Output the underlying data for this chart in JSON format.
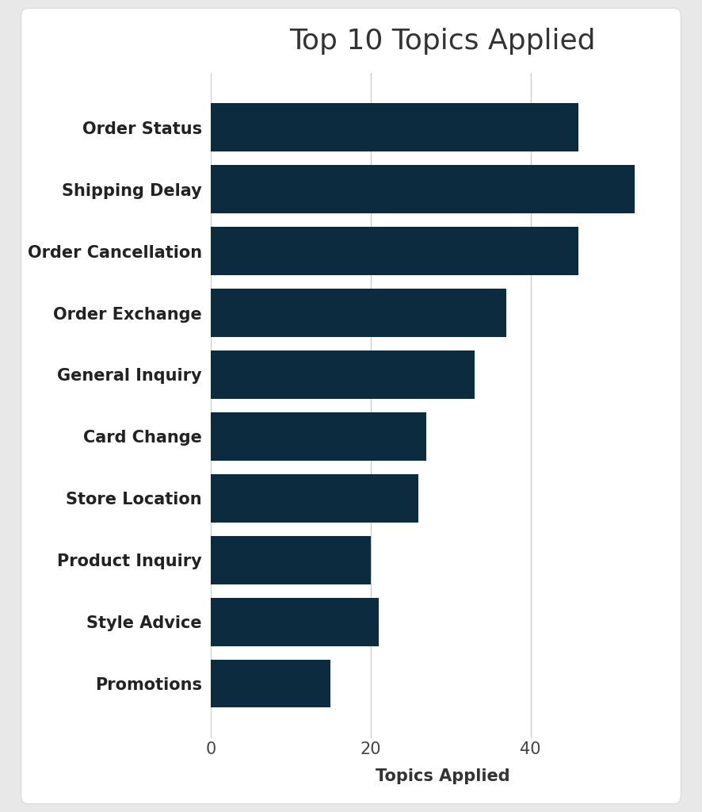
{
  "title": "Top 10 Topics Applied",
  "xlabel": "Topics Applied",
  "categories": [
    "Promotions",
    "Style Advice",
    "Product Inquiry",
    "Store Location",
    "Card Change",
    "General Inquiry",
    "Order Exchange",
    "Order Cancellation",
    "Shipping Delay",
    "Order Status"
  ],
  "values": [
    15,
    21,
    20,
    26,
    27,
    33,
    37,
    46,
    53,
    46
  ],
  "bar_color": "#0d2b3e",
  "outer_background": "#e8e8e8",
  "card_background": "#ffffff",
  "title_fontsize": 26,
  "xlabel_fontsize": 15,
  "tick_fontsize": 15,
  "ylabel_fontsize": 15,
  "xlim": [
    0,
    58
  ],
  "xticks": [
    0,
    20,
    40
  ],
  "bar_height": 0.78
}
